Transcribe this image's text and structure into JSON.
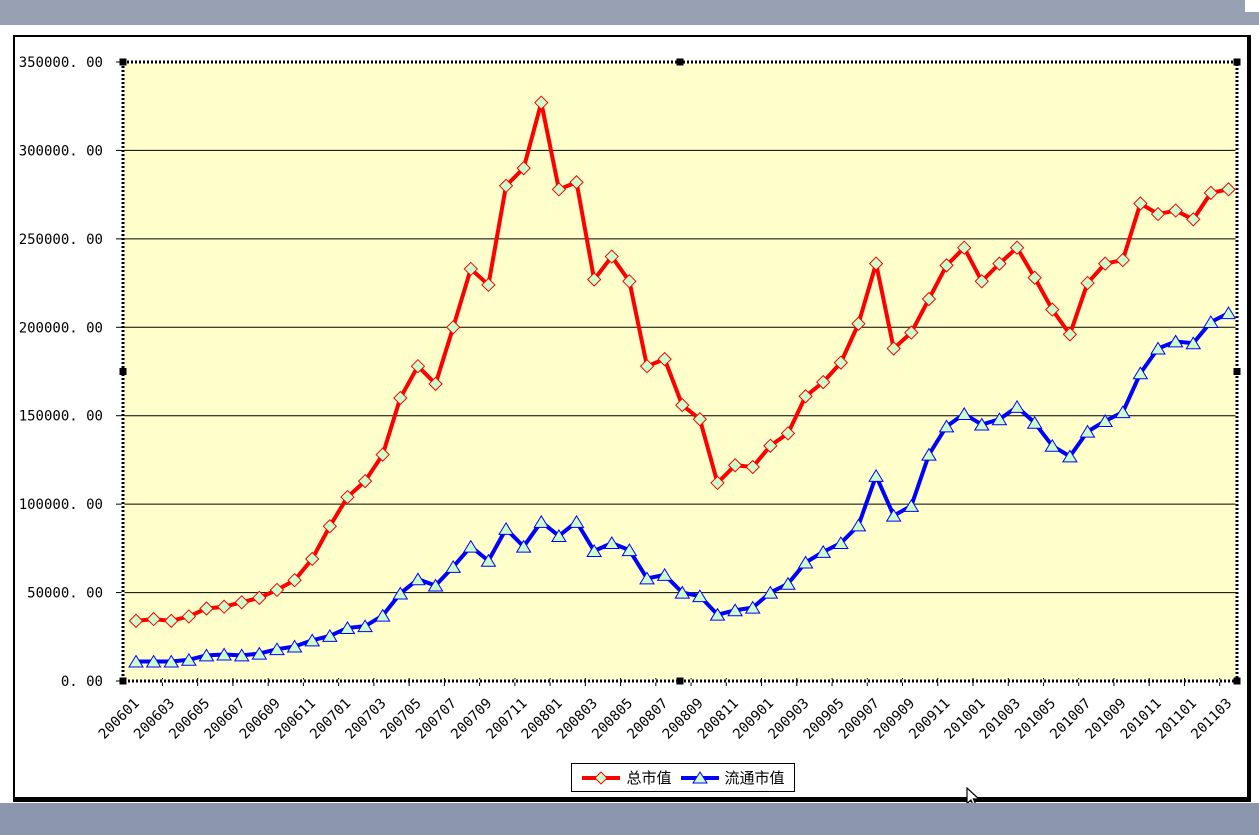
{
  "window": {
    "top_bar_color": "#98A1B4",
    "bottom_bar_color": "#8C97AD",
    "sheet_bg": "#FFFFFF"
  },
  "chart_data": {
    "type": "line",
    "title": "",
    "xlabel": "",
    "ylabel": "",
    "ylim": [
      0,
      350000
    ],
    "y_tick_interval": 50000,
    "y_tick_labels_top_down": [
      "350000. 00",
      "300000. 00",
      "250000. 00",
      "200000. 00",
      "150000. 00",
      "100000. 00",
      "50000. 00",
      "0. 00"
    ],
    "grid": "horizontal",
    "plot_bg": "#FFFFCC",
    "gridline_color": "#000000",
    "legend_position": "bottom",
    "selection_state": "plot-area-selected",
    "label_every": 2,
    "categories": [
      "200601",
      "200602",
      "200603",
      "200604",
      "200605",
      "200606",
      "200607",
      "200608",
      "200609",
      "200610",
      "200611",
      "200612",
      "200701",
      "200702",
      "200703",
      "200704",
      "200705",
      "200706",
      "200707",
      "200708",
      "200709",
      "200710",
      "200711",
      "200712",
      "200801",
      "200802",
      "200803",
      "200804",
      "200805",
      "200806",
      "200807",
      "200808",
      "200809",
      "200810",
      "200811",
      "200812",
      "200901",
      "200902",
      "200903",
      "200904",
      "200905",
      "200906",
      "200907",
      "200908",
      "200909",
      "200910",
      "200911",
      "200912",
      "201001",
      "201002",
      "201003",
      "201004",
      "201005",
      "201006",
      "201007",
      "201008",
      "201009",
      "201010",
      "201011",
      "201012",
      "201101",
      "201102",
      "201103"
    ],
    "x_tick_labels": [
      "200601",
      "200603",
      "200605",
      "200607",
      "200609",
      "200611",
      "200701",
      "200703",
      "200705",
      "200707",
      "200709",
      "200711",
      "200801",
      "200803",
      "200805",
      "200807",
      "200809",
      "200811",
      "200901",
      "200903",
      "200905",
      "200907",
      "200909",
      "200911",
      "201001",
      "201003",
      "201005",
      "201007",
      "201009",
      "201011",
      "201101",
      "201103"
    ],
    "series": [
      {
        "name": "总市值",
        "color": "#FF0000",
        "marker": "diamond",
        "marker_fill": "#CCFFCC",
        "values": [
          34000,
          35000,
          34000,
          36500,
          41000,
          42000,
          44500,
          47000,
          51500,
          57000,
          69000,
          87500,
          104000,
          113000,
          128000,
          160000,
          178000,
          168000,
          200000,
          233000,
          224000,
          280000,
          290000,
          327000,
          278000,
          282000,
          227000,
          240000,
          226000,
          178000,
          182000,
          156000,
          148000,
          112000,
          122000,
          121000,
          133000,
          140000,
          161000,
          169000,
          180000,
          202000,
          236000,
          188000,
          197000,
          216000,
          235000,
          245000,
          226000,
          236000,
          245000,
          228000,
          210000,
          196000,
          225000,
          236000,
          238000,
          270000,
          264000,
          266000,
          261000,
          276000,
          278000
        ]
      },
      {
        "name": "流通市值",
        "color": "#0000FF",
        "marker": "triangle",
        "marker_fill": "#CCFFCC",
        "values": [
          11000,
          11000,
          11000,
          12000,
          14500,
          15000,
          14500,
          15500,
          18000,
          19500,
          23000,
          25500,
          30000,
          31000,
          37000,
          49500,
          57500,
          54000,
          64500,
          76000,
          68000,
          86000,
          76000,
          90000,
          82000,
          90000,
          73500,
          78000,
          74000,
          58000,
          60000,
          50000,
          48000,
          37500,
          40000,
          41500,
          50000,
          55000,
          67000,
          73000,
          78000,
          88000,
          116000,
          93500,
          99000,
          128000,
          144000,
          151000,
          145000,
          148000,
          155000,
          146000,
          133000,
          127000,
          141000,
          147000,
          152000,
          174000,
          188000,
          192000,
          191000,
          203000,
          208000
        ]
      }
    ]
  },
  "legend": {
    "items": [
      {
        "label": "总市值"
      },
      {
        "label": "流通市值"
      }
    ]
  }
}
